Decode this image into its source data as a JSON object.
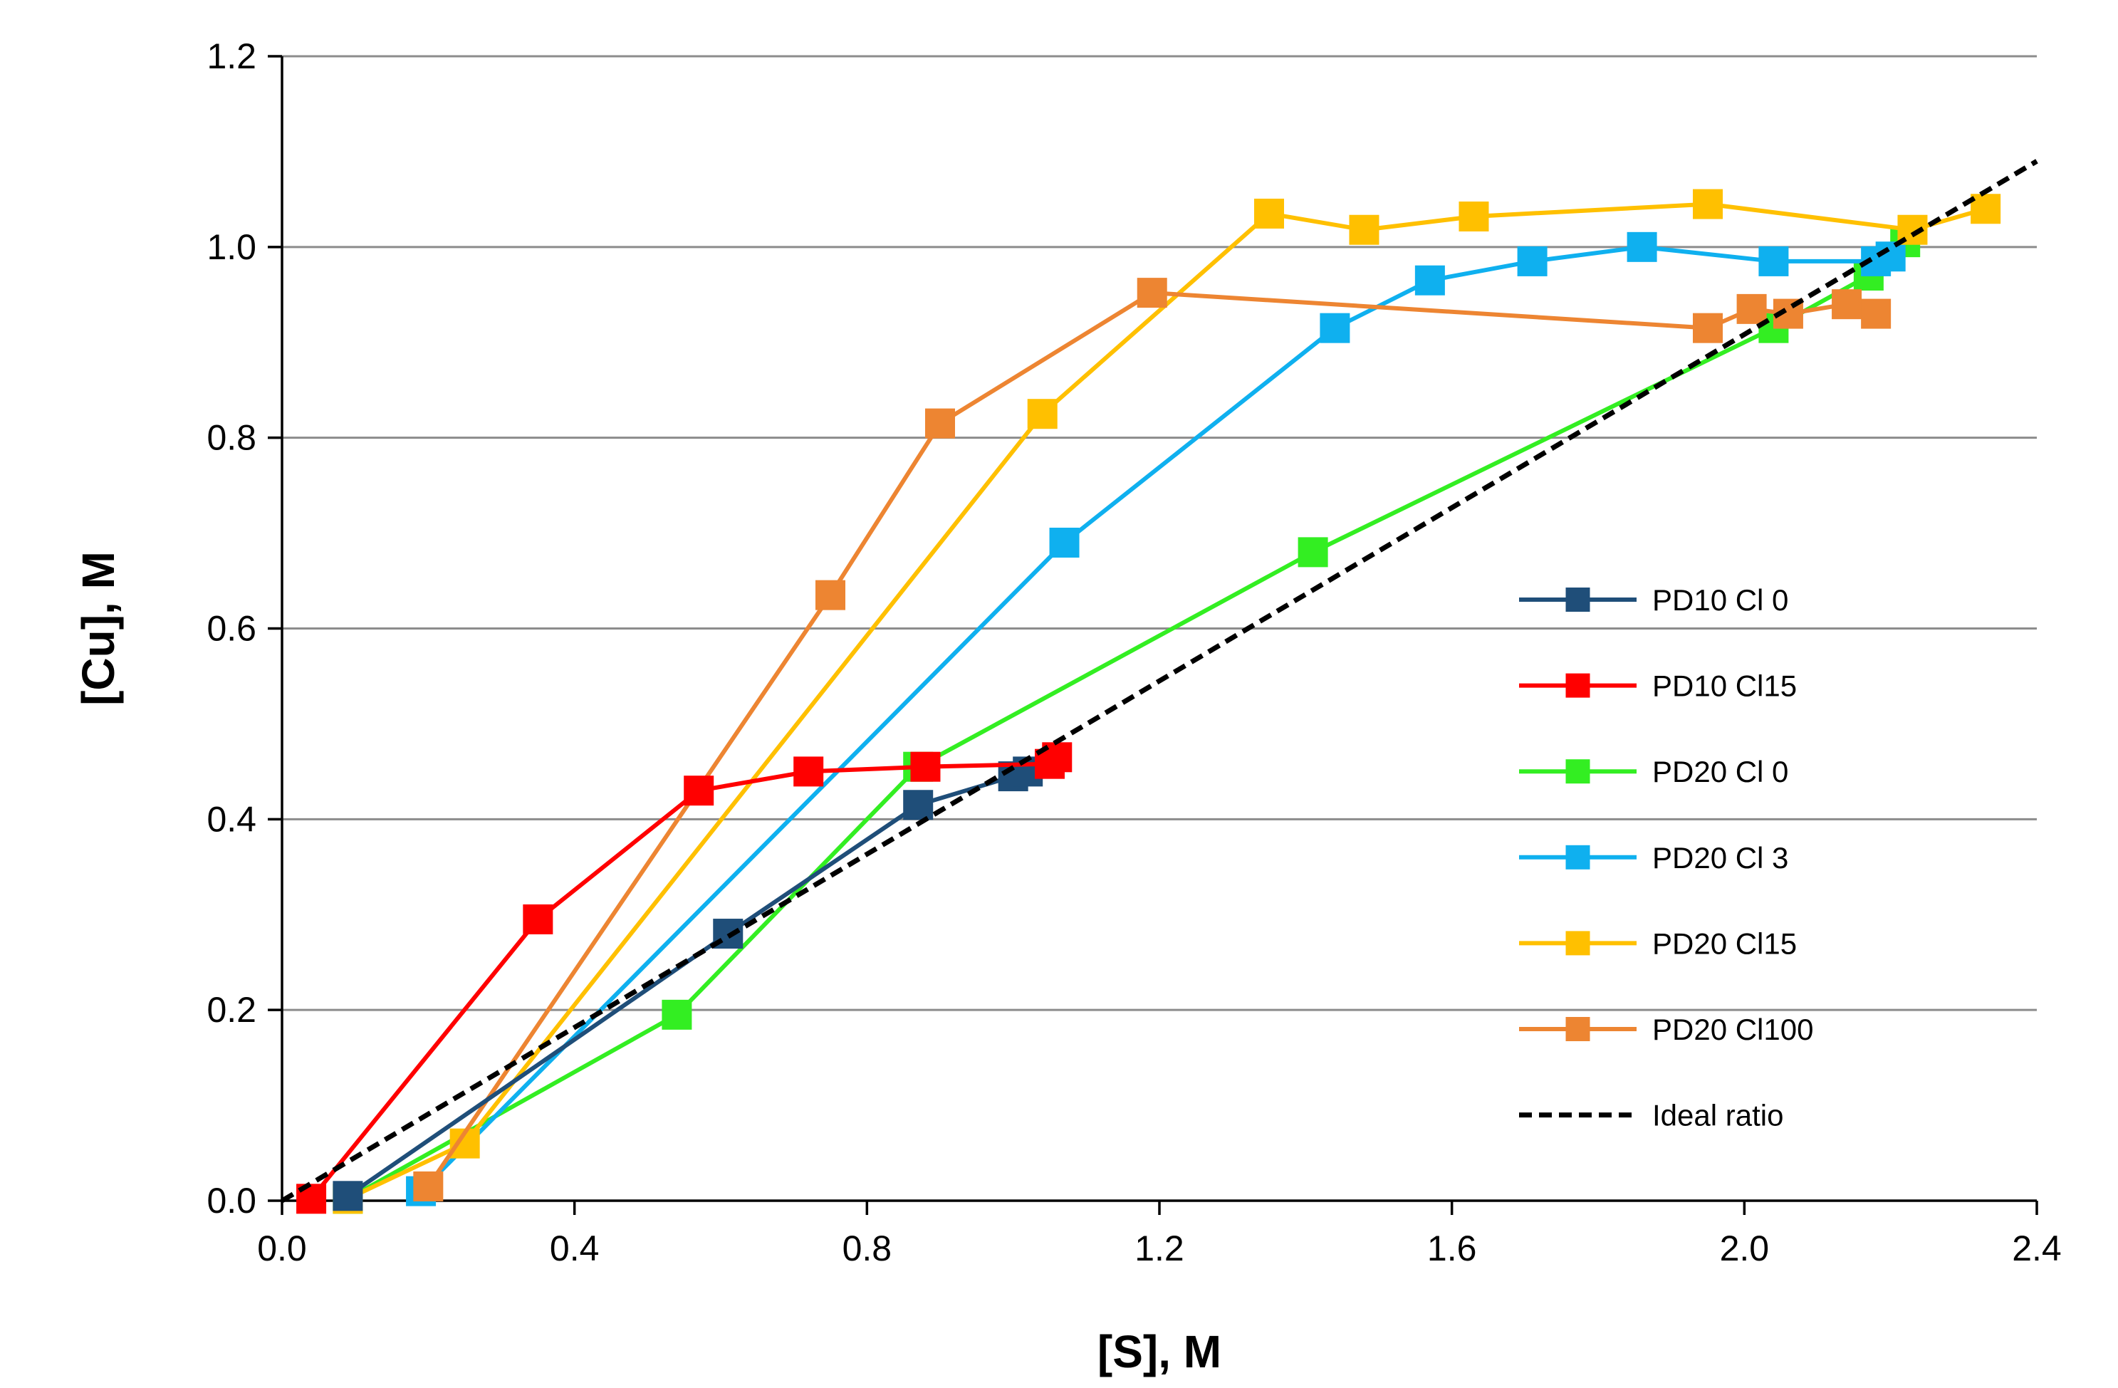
{
  "chart_data": {
    "type": "line",
    "title": "",
    "xlabel": "[S], M",
    "ylabel": "[Cu], M",
    "xlim": [
      0,
      2.4
    ],
    "ylim": [
      0,
      1.2
    ],
    "xticks": [
      0.0,
      0.4,
      0.8,
      1.2,
      1.6,
      2.0,
      2.4
    ],
    "yticks": [
      0.0,
      0.2,
      0.4,
      0.6,
      0.8,
      1.0,
      1.2
    ],
    "xtick_labels": [
      "0.0",
      "0.4",
      "0.8",
      "1.2",
      "1.6",
      "2.0",
      "2.4"
    ],
    "ytick_labels": [
      "0.0",
      "0.2",
      "0.4",
      "0.6",
      "0.8",
      "1.0",
      "1.2"
    ],
    "grid": "horizontal major",
    "legend_position": "right",
    "series": [
      {
        "name": "PD10 Cl 0",
        "color": "#1f4e79",
        "marker": "square",
        "x": [
          0.09,
          0.61,
          0.87,
          1.0,
          1.02
        ],
        "y": [
          0.005,
          0.28,
          0.415,
          0.445,
          0.45
        ]
      },
      {
        "name": "PD10 Cl15",
        "color": "#ff0000",
        "marker": "square",
        "x": [
          0.04,
          0.35,
          0.57,
          0.72,
          0.88,
          1.05,
          1.06
        ],
        "y": [
          0.002,
          0.295,
          0.43,
          0.45,
          0.455,
          0.458,
          0.465
        ]
      },
      {
        "name": "PD20 Cl 0",
        "color": "#33ee22",
        "marker": "square",
        "x": [
          0.09,
          0.54,
          0.87,
          1.41,
          2.04,
          2.17,
          2.22
        ],
        "y": [
          0.002,
          0.195,
          0.455,
          0.68,
          0.915,
          0.97,
          1.005
        ]
      },
      {
        "name": "PD20 Cl 3",
        "color": "#0fb0ef",
        "marker": "square",
        "x": [
          0.19,
          1.07,
          1.44,
          1.57,
          1.71,
          1.86,
          2.04,
          2.18,
          2.2
        ],
        "y": [
          0.01,
          0.69,
          0.915,
          0.965,
          0.985,
          1.0,
          0.985,
          0.985,
          0.99
        ]
      },
      {
        "name": "PD20 Cl15",
        "color": "#ffc000",
        "marker": "square",
        "x": [
          0.09,
          0.25,
          1.04,
          1.35,
          1.48,
          1.63,
          1.95,
          2.23,
          2.33
        ],
        "y": [
          0.002,
          0.06,
          0.825,
          1.035,
          1.018,
          1.032,
          1.045,
          1.018,
          1.04
        ]
      },
      {
        "name": "PD20 Cl100",
        "color": "#ed8532",
        "marker": "square",
        "x": [
          0.2,
          0.75,
          0.9,
          1.19,
          1.95,
          2.01,
          2.06,
          2.14,
          2.18
        ],
        "y": [
          0.015,
          0.635,
          0.815,
          0.952,
          0.915,
          0.935,
          0.93,
          0.94,
          0.93
        ]
      },
      {
        "name": "Ideal ratio",
        "color": "#000000",
        "marker": "none",
        "dashed": true,
        "x": [
          0.0,
          2.4
        ],
        "y": [
          0.0,
          1.09
        ]
      }
    ]
  }
}
